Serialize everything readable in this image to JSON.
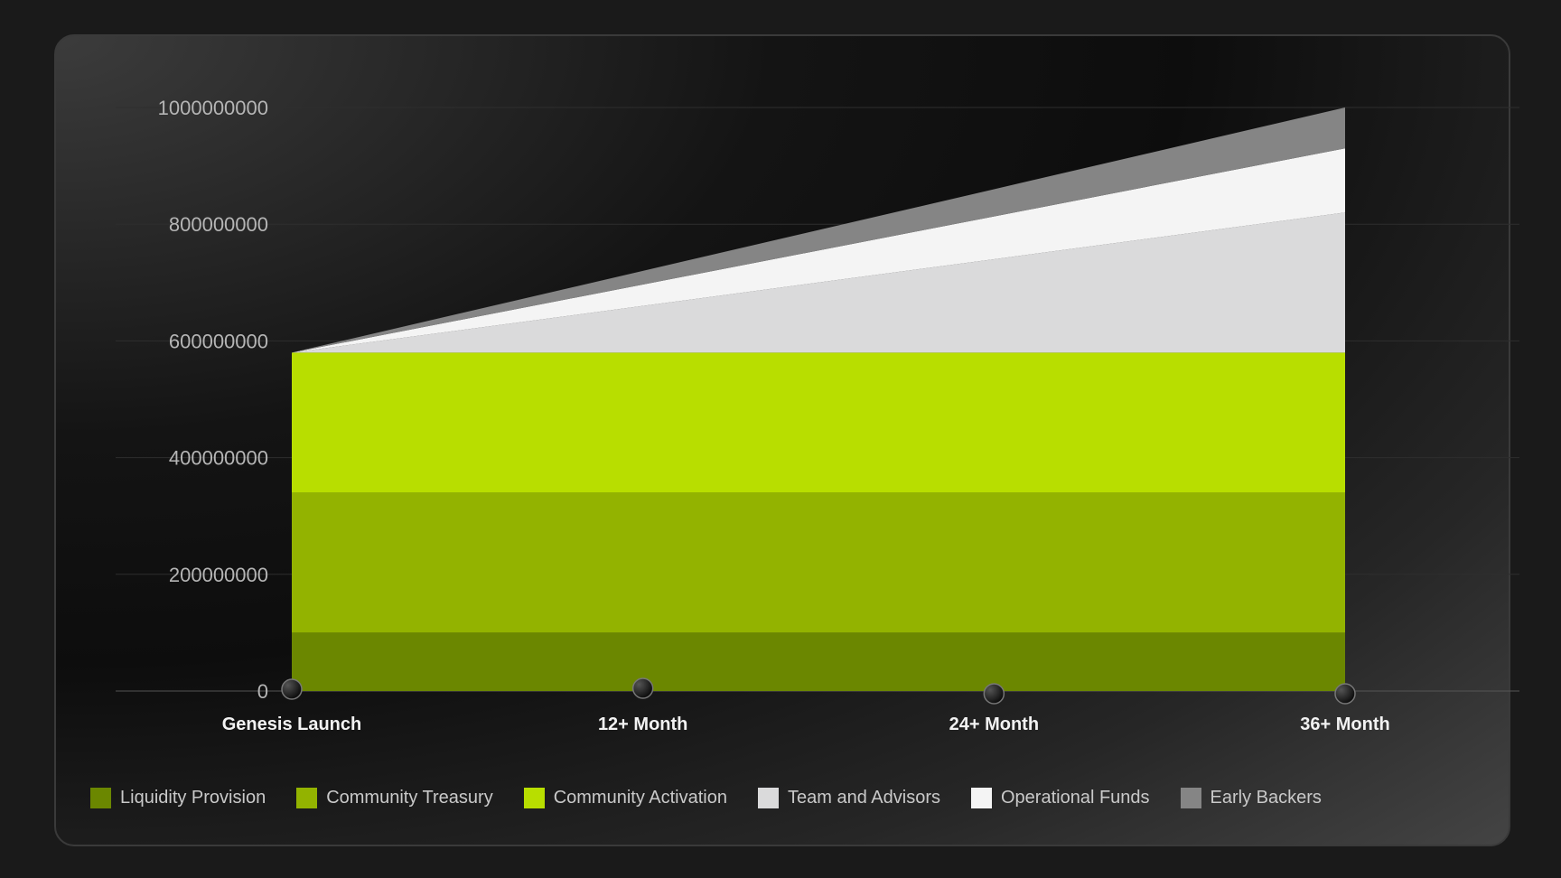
{
  "chart_data": {
    "type": "area",
    "stacked": true,
    "title": "",
    "xlabel": "",
    "ylabel": "",
    "categories": [
      "Genesis Launch",
      "12+ Month",
      "24+ Month",
      "36+ Month"
    ],
    "ylim": [
      0,
      1000000000
    ],
    "yticks": [
      "0",
      "200000000",
      "400000000",
      "600000000",
      "800000000",
      "1000000000"
    ],
    "grid": true,
    "legend_position": "bottom",
    "series": [
      {
        "name": "Liquidity Provision",
        "color": "#6b8700",
        "values": [
          100000000,
          100000000,
          100000000,
          100000000
        ]
      },
      {
        "name": "Community Treasury",
        "color": "#93b300",
        "values": [
          240000000,
          240000000,
          240000000,
          240000000
        ]
      },
      {
        "name": "Community Activation",
        "color": "#b8de00",
        "values": [
          240000000,
          240000000,
          240000000,
          240000000
        ]
      },
      {
        "name": "Team and Advisors",
        "color": "#dadadb",
        "values": [
          0,
          80000000,
          160000000,
          240000000
        ]
      },
      {
        "name": "Operational Funds",
        "color": "#f4f4f4",
        "values": [
          0,
          36667000,
          73333000,
          110000000
        ]
      },
      {
        "name": "Early Backers",
        "color": "#858585",
        "values": [
          0,
          23333000,
          46667000,
          70000000
        ]
      }
    ]
  }
}
